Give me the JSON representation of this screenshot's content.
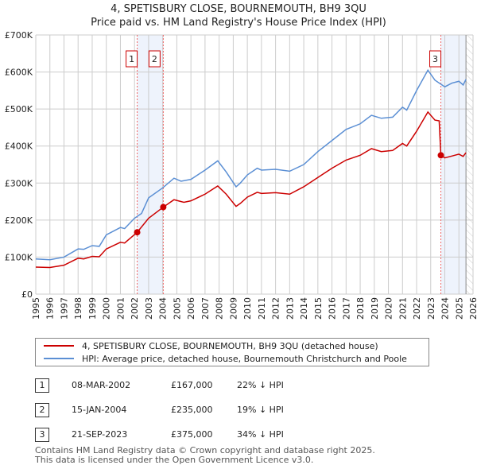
{
  "title": "4, SPETISBURY CLOSE, BOURNEMOUTH, BH9 3QU",
  "subtitle": "Price paid vs. HM Land Registry's House Price Index (HPI)",
  "chart_data": {
    "type": "line",
    "title": "4, SPETISBURY CLOSE, BOURNEMOUTH, BH9 3QU",
    "subtitle": "Price paid vs. HM Land Registry's House Price Index (HPI)",
    "xlim": [
      1995,
      2026
    ],
    "ylim": [
      0,
      700000
    ],
    "yticks": [
      0,
      100000,
      200000,
      300000,
      400000,
      500000,
      600000,
      700000
    ],
    "ytick_labels": [
      "£0",
      "£100K",
      "£200K",
      "£300K",
      "£400K",
      "£500K",
      "£600K",
      "£700K"
    ],
    "xticks": [
      "1995",
      "1996",
      "1997",
      "1998",
      "1999",
      "2000",
      "2001",
      "2002",
      "2003",
      "2004",
      "2005",
      "2006",
      "2007",
      "2008",
      "2009",
      "2010",
      "2011",
      "2012",
      "2013",
      "2014",
      "2015",
      "2016",
      "2017",
      "2018",
      "2019",
      "2020",
      "2021",
      "2022",
      "2023",
      "2024",
      "2025",
      "2026"
    ],
    "grid": true,
    "legend_position": "below",
    "series": [
      {
        "name": "4, SPETISBURY CLOSE, BOURNEMOUTH, BH9 3QU (detached house)",
        "color": "#cc0000",
        "x": [
          1995,
          1996,
          1997,
          1998,
          1998.4,
          1999,
          1999.5,
          2000,
          2001,
          2001.3,
          2002.19,
          2003,
          2004.04,
          2004.8,
          2005.5,
          2006,
          2007,
          2007.9,
          2008.5,
          2009.2,
          2009.5,
          2010,
          2010.7,
          2011,
          2012,
          2013,
          2014,
          2015,
          2016,
          2017,
          2018,
          2018.8,
          2019.5,
          2020.3,
          2021,
          2021.3,
          2022,
          2022.8,
          2023.3,
          2023.6,
          2023.72,
          2024,
          2024.5,
          2025,
          2025.3,
          2025.5
        ],
        "y": [
          73000,
          72000,
          78000,
          97000,
          95000,
          102000,
          101000,
          122000,
          140000,
          138000,
          167000,
          205000,
          235000,
          255000,
          248000,
          252000,
          270000,
          292000,
          270000,
          237000,
          245000,
          262000,
          275000,
          272000,
          274000,
          270000,
          290000,
          315000,
          340000,
          362000,
          375000,
          393000,
          385000,
          388000,
          407000,
          400000,
          440000,
          492000,
          470000,
          468000,
          375000,
          368000,
          373000,
          378000,
          372000,
          382000
        ]
      },
      {
        "name": "HPI: Average price, detached house, Bournemouth Christchurch and Poole",
        "color": "#5b8fd4",
        "x": [
          1995,
          1996,
          1997,
          1998,
          1998.4,
          1999,
          1999.5,
          2000,
          2001,
          2001.3,
          2002,
          2002.5,
          2003,
          2004,
          2004.8,
          2005.3,
          2006,
          2007,
          2007.9,
          2008.5,
          2009.2,
          2009.5,
          2010,
          2010.7,
          2011,
          2012,
          2013,
          2014,
          2015,
          2016,
          2017,
          2018,
          2018.8,
          2019.5,
          2020.3,
          2021,
          2021.3,
          2022,
          2022.8,
          2023.3,
          2024,
          2024.5,
          2025,
          2025.3,
          2025.5
        ],
        "y": [
          95000,
          93000,
          100000,
          122000,
          121000,
          131000,
          129000,
          160000,
          180000,
          177000,
          205000,
          218000,
          260000,
          287000,
          313000,
          305000,
          310000,
          335000,
          360000,
          330000,
          290000,
          300000,
          322000,
          340000,
          335000,
          337000,
          332000,
          350000,
          385000,
          415000,
          445000,
          460000,
          483000,
          475000,
          478000,
          505000,
          497000,
          550000,
          605000,
          578000,
          560000,
          570000,
          575000,
          565000,
          580000
        ]
      }
    ],
    "annotations": [
      {
        "label": "1",
        "x": 2002.19,
        "y": 167000
      },
      {
        "label": "2",
        "x": 2004.04,
        "y": 235000
      },
      {
        "label": "3",
        "x": 2023.72,
        "y": 375000
      }
    ],
    "shaded_ranges": [
      [
        2002.19,
        2004.04
      ],
      [
        2023.72,
        2025.5
      ]
    ],
    "hatched_after": 2025.5
  },
  "legend": [
    {
      "label": "4, SPETISBURY CLOSE, BOURNEMOUTH, BH9 3QU (detached house)",
      "color": "#cc0000"
    },
    {
      "label": "HPI: Average price, detached house, Bournemouth Christchurch and Poole",
      "color": "#5b8fd4"
    }
  ],
  "sales": [
    {
      "num": "1",
      "date": "08-MAR-2002",
      "price": "£167,000",
      "hpi": "22% ↓ HPI"
    },
    {
      "num": "2",
      "date": "15-JAN-2004",
      "price": "£235,000",
      "hpi": "19% ↓ HPI"
    },
    {
      "num": "3",
      "date": "21-SEP-2023",
      "price": "£375,000",
      "hpi": "34% ↓ HPI"
    }
  ],
  "footer": [
    "Contains HM Land Registry data © Crown copyright and database right 2025.",
    "This data is licensed under the Open Government Licence v3.0."
  ]
}
